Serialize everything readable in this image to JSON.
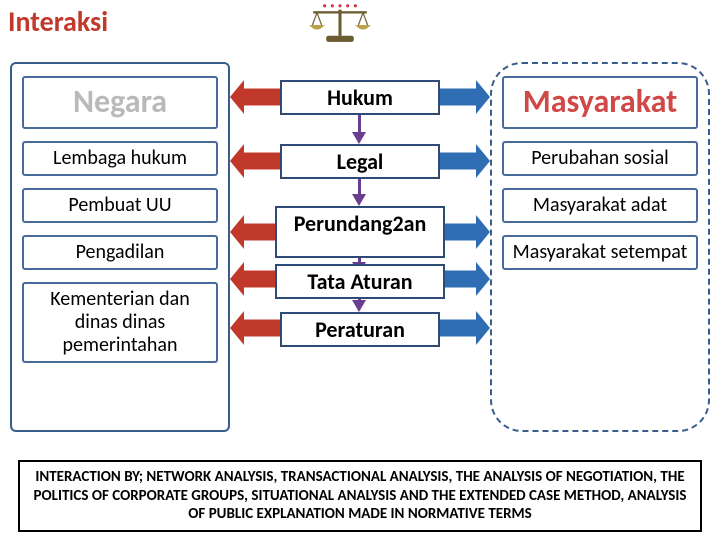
{
  "title": {
    "text": "Interaksi",
    "color": "#c0392b"
  },
  "scales": {
    "stand_color": "#6b5b2f",
    "pan_color": "#bca14a",
    "dot_color": "#d03040"
  },
  "left_panel": {
    "header": "Negara",
    "header_text_color": "#b9b9b9",
    "items": [
      "Lembaga hukum",
      "Pembuat UU",
      "Pengadilan",
      "Kementerian dan dinas dinas pemerintahan"
    ]
  },
  "right_panel": {
    "header": "Masyarakat",
    "header_text_color": "#d04848",
    "items": [
      "Perubahan sosial",
      "Masyarakat adat",
      "Masyarakat setempat"
    ]
  },
  "middle_flow": {
    "boxes": [
      "Hukum",
      "Legal",
      "Perundang2an",
      "Tata Aturan",
      "Peraturan"
    ],
    "arrow_left_color": "#c0392b",
    "arrow_right_color": "#2f6db3",
    "down_arrow_color": "#6a3e8f"
  },
  "footer": {
    "text": "INTERACTION BY; NETWORK ANALYSIS, TRANSACTIONAL ANALYSIS, THE ANALYSIS OF NEGOTIATION, THE POLITICS OF CORPORATE GROUPS, SITUATIONAL ANALYSIS AND THE EXTENDED CASE METHOD, ANALYSIS OF PUBLIC EXPLANATION MADE IN NORMATIVE TERMS"
  },
  "box_border_color": "#486a9c"
}
